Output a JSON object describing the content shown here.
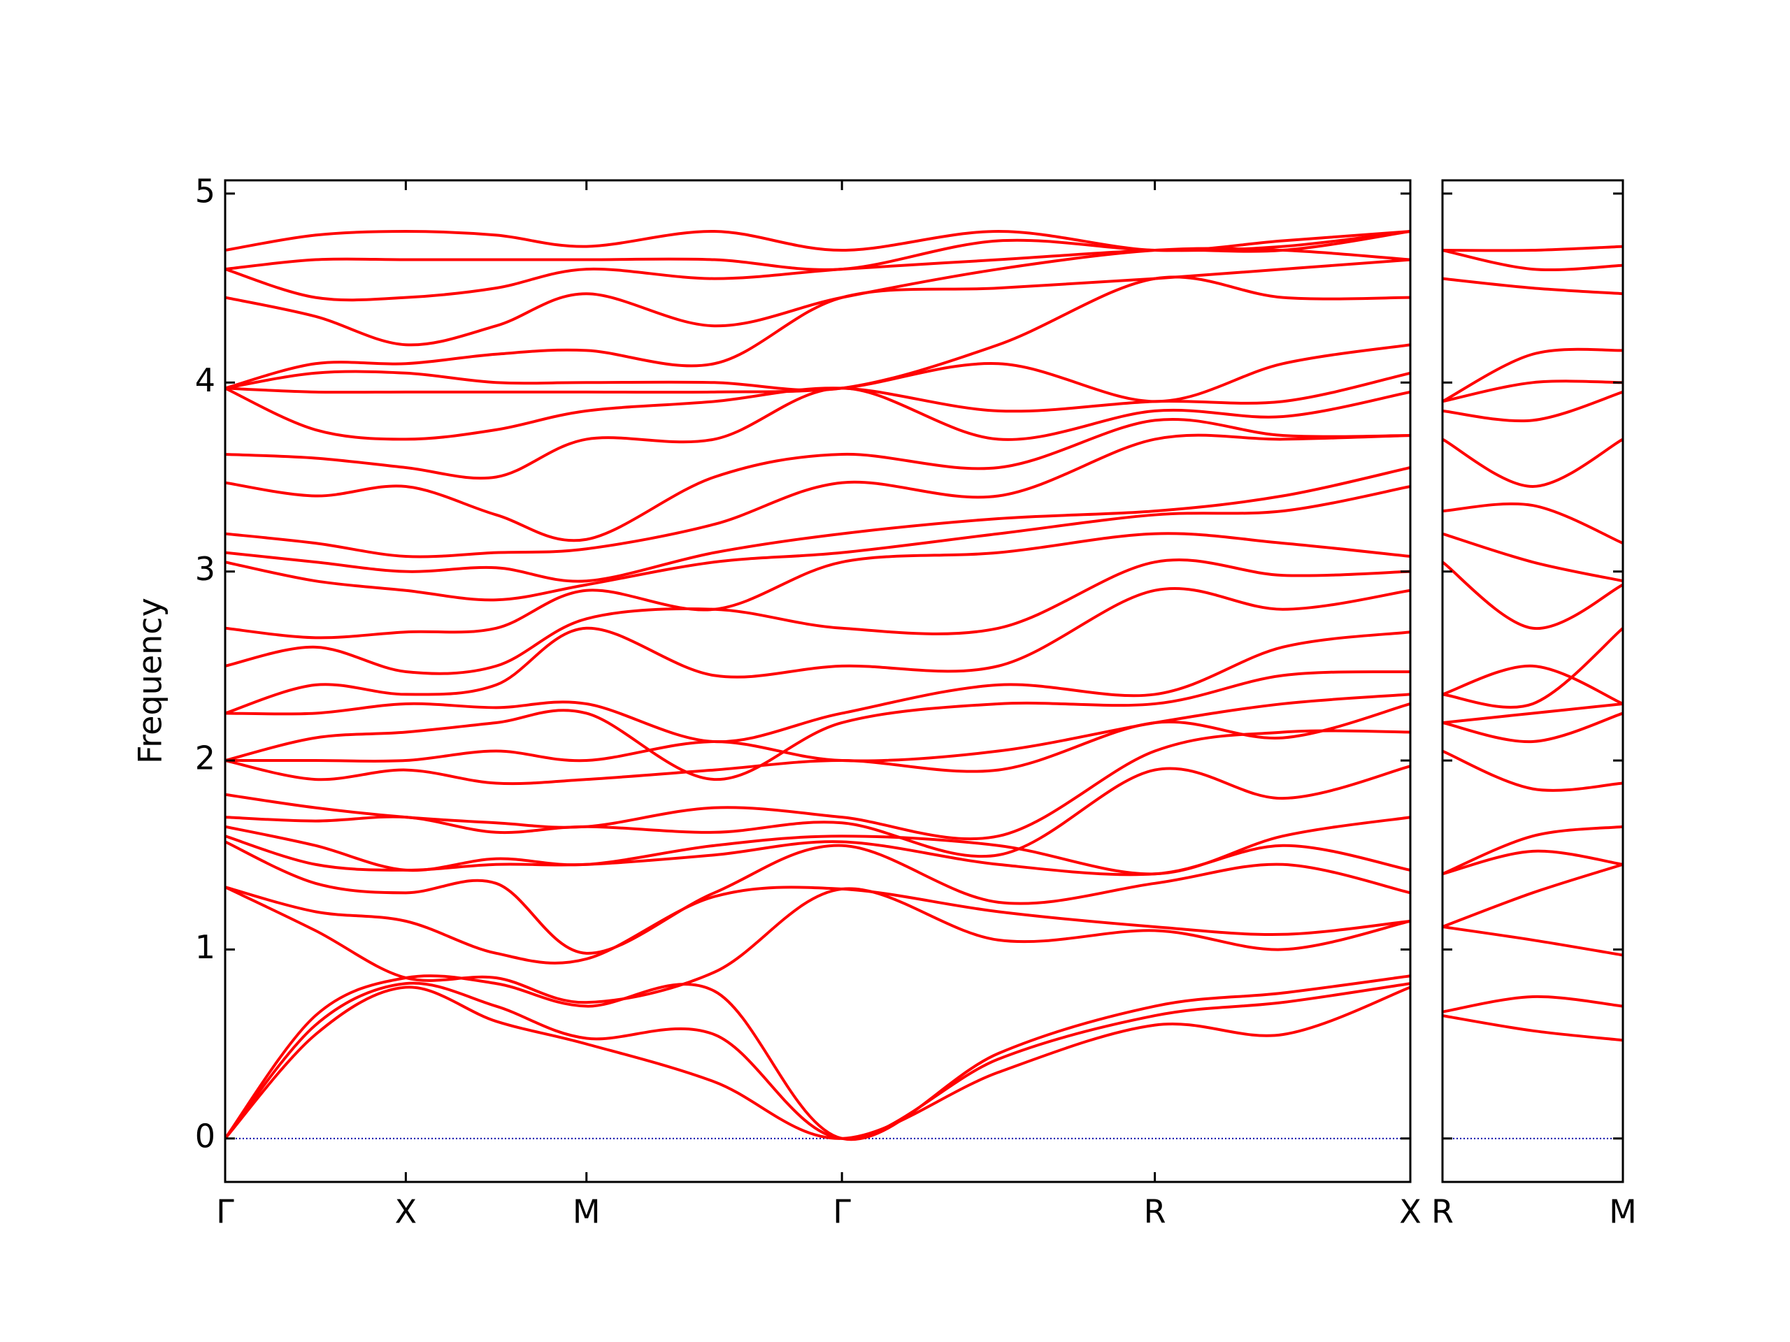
{
  "chart_data": [
    {
      "type": "line",
      "ylabel": "Frequency",
      "color": "#ff0000",
      "xlim": [
        0,
        3.2802
      ],
      "ylim": [
        -0.23,
        5.07
      ],
      "xticks": [
        {
          "value": 0,
          "label": "Γ"
        },
        {
          "value": 0.5,
          "label": "X"
        },
        {
          "value": 1.0,
          "label": "M"
        },
        {
          "value": 1.7071,
          "label": "Γ"
        },
        {
          "value": 2.5731,
          "label": "R"
        },
        {
          "value": 3.2802,
          "label": "X"
        }
      ],
      "yticks": [
        0,
        1,
        2,
        3,
        4,
        5
      ],
      "ytick_labels": true,
      "hline": 0,
      "hline_color": "#0000aa",
      "x": [
        0,
        0.25,
        0.5,
        0.75,
        1.0,
        1.354,
        1.7071,
        2.14,
        2.5731,
        2.927,
        3.2802
      ],
      "series": [
        {
          "values": [
            0,
            0.55,
            0.8,
            0.62,
            0.5,
            0.3,
            0,
            0.35,
            0.6,
            0.55,
            0.8
          ]
        },
        {
          "values": [
            0,
            0.6,
            0.82,
            0.7,
            0.53,
            0.55,
            0,
            0.42,
            0.65,
            0.72,
            0.82
          ]
        },
        {
          "values": [
            0,
            0.65,
            0.85,
            0.82,
            0.7,
            0.78,
            0,
            0.45,
            0.7,
            0.77,
            0.86
          ]
        },
        {
          "values": [
            1.33,
            1.1,
            0.85,
            0.85,
            0.72,
            0.88,
            1.32,
            1.05,
            1.1,
            1.0,
            1.15
          ]
        },
        {
          "values": [
            1.33,
            1.2,
            1.15,
            0.98,
            0.95,
            1.28,
            1.32,
            1.2,
            1.12,
            1.08,
            1.15
          ]
        },
        {
          "values": [
            1.57,
            1.35,
            1.3,
            1.35,
            0.98,
            1.3,
            1.55,
            1.25,
            1.35,
            1.45,
            1.3
          ]
        },
        {
          "values": [
            1.6,
            1.45,
            1.42,
            1.45,
            1.45,
            1.5,
            1.57,
            1.45,
            1.4,
            1.55,
            1.42
          ]
        },
        {
          "values": [
            1.65,
            1.55,
            1.42,
            1.48,
            1.45,
            1.55,
            1.6,
            1.55,
            1.4,
            1.6,
            1.7
          ]
        },
        {
          "values": [
            1.7,
            1.68,
            1.7,
            1.62,
            1.65,
            1.62,
            1.67,
            1.5,
            1.95,
            1.8,
            1.97
          ]
        },
        {
          "values": [
            1.82,
            1.75,
            1.7,
            1.67,
            1.65,
            1.75,
            1.7,
            1.6,
            2.05,
            2.15,
            2.15
          ]
        },
        {
          "values": [
            2.0,
            1.9,
            1.95,
            1.88,
            1.9,
            1.95,
            2.0,
            1.95,
            2.2,
            2.12,
            2.3
          ]
        },
        {
          "values": [
            2.0,
            2.0,
            2.0,
            2.05,
            2.0,
            2.1,
            2.0,
            2.05,
            2.2,
            2.3,
            2.35
          ]
        },
        {
          "values": [
            2.0,
            2.12,
            2.15,
            2.2,
            2.25,
            1.9,
            2.2,
            2.3,
            2.3,
            2.45,
            2.47
          ]
        },
        {
          "values": [
            2.25,
            2.25,
            2.3,
            2.28,
            2.3,
            2.1,
            2.25,
            2.4,
            2.35,
            2.6,
            2.68
          ]
        },
        {
          "values": [
            2.25,
            2.4,
            2.35,
            2.4,
            2.7,
            2.45,
            2.5,
            2.5,
            2.9,
            2.8,
            2.9
          ]
        },
        {
          "values": [
            2.5,
            2.6,
            2.47,
            2.5,
            2.75,
            2.8,
            2.7,
            2.7,
            3.05,
            2.98,
            3.0
          ]
        },
        {
          "values": [
            2.7,
            2.65,
            2.68,
            2.7,
            2.9,
            2.8,
            3.05,
            3.1,
            3.2,
            3.15,
            3.08
          ]
        },
        {
          "values": [
            3.05,
            2.95,
            2.9,
            2.85,
            2.93,
            3.05,
            3.1,
            3.2,
            3.3,
            3.32,
            3.45
          ]
        },
        {
          "values": [
            3.1,
            3.05,
            3.0,
            3.02,
            2.95,
            3.1,
            3.2,
            3.28,
            3.32,
            3.4,
            3.55
          ]
        },
        {
          "values": [
            3.2,
            3.15,
            3.08,
            3.1,
            3.12,
            3.25,
            3.47,
            3.4,
            3.7,
            3.7,
            3.72
          ]
        },
        {
          "values": [
            3.47,
            3.4,
            3.45,
            3.3,
            3.17,
            3.5,
            3.62,
            3.55,
            3.8,
            3.72,
            3.72
          ]
        },
        {
          "values": [
            3.62,
            3.6,
            3.55,
            3.5,
            3.7,
            3.7,
            3.97,
            3.7,
            3.85,
            3.82,
            3.95
          ]
        },
        {
          "values": [
            3.97,
            3.75,
            3.7,
            3.75,
            3.85,
            3.9,
            3.97,
            3.85,
            3.9,
            3.9,
            4.05
          ]
        },
        {
          "values": [
            3.97,
            3.95,
            3.95,
            3.95,
            3.95,
            3.95,
            3.97,
            4.1,
            3.9,
            4.1,
            4.2
          ]
        },
        {
          "values": [
            3.97,
            4.05,
            4.05,
            4.0,
            4.0,
            4.0,
            3.97,
            4.2,
            4.55,
            4.45,
            4.45
          ]
        },
        {
          "values": [
            3.97,
            4.1,
            4.1,
            4.15,
            4.17,
            4.1,
            4.45,
            4.5,
            4.55,
            4.6,
            4.65
          ]
        },
        {
          "values": [
            4.45,
            4.35,
            4.2,
            4.3,
            4.47,
            4.3,
            4.45,
            4.6,
            4.7,
            4.7,
            4.65
          ]
        },
        {
          "values": [
            4.6,
            4.45,
            4.45,
            4.5,
            4.6,
            4.55,
            4.6,
            4.65,
            4.7,
            4.7,
            4.8
          ]
        },
        {
          "values": [
            4.6,
            4.65,
            4.65,
            4.65,
            4.65,
            4.65,
            4.6,
            4.75,
            4.7,
            4.72,
            4.8
          ]
        },
        {
          "values": [
            4.7,
            4.78,
            4.8,
            4.78,
            4.72,
            4.8,
            4.7,
            4.8,
            4.7,
            4.75,
            4.8
          ]
        }
      ]
    },
    {
      "type": "line",
      "color": "#ff0000",
      "xlim": [
        0,
        0.5
      ],
      "ylim": [
        -0.23,
        5.07
      ],
      "xticks": [
        {
          "value": 0,
          "label": "R"
        },
        {
          "value": 0.5,
          "label": "M"
        }
      ],
      "yticks": [
        0,
        1,
        2,
        3,
        4,
        5
      ],
      "ytick_labels": false,
      "hline": 0,
      "hline_color": "#0000aa",
      "x": [
        0,
        0.25,
        0.5
      ],
      "series": [
        {
          "values": [
            0.65,
            0.57,
            0.52
          ]
        },
        {
          "values": [
            0.67,
            0.75,
            0.7
          ]
        },
        {
          "values": [
            1.12,
            1.05,
            0.97
          ]
        },
        {
          "values": [
            1.12,
            1.3,
            1.45
          ]
        },
        {
          "values": [
            1.4,
            1.52,
            1.45
          ]
        },
        {
          "values": [
            1.4,
            1.6,
            1.65
          ]
        },
        {
          "values": [
            2.05,
            1.85,
            1.88
          ]
        },
        {
          "values": [
            2.2,
            2.1,
            2.25
          ]
        },
        {
          "values": [
            2.2,
            2.25,
            2.3
          ]
        },
        {
          "values": [
            2.35,
            2.5,
            2.3
          ]
        },
        {
          "values": [
            2.35,
            2.3,
            2.7
          ]
        },
        {
          "values": [
            3.05,
            2.7,
            2.93
          ]
        },
        {
          "values": [
            3.2,
            3.05,
            2.95
          ]
        },
        {
          "values": [
            3.32,
            3.35,
            3.15
          ]
        },
        {
          "values": [
            3.7,
            3.45,
            3.7
          ]
        },
        {
          "values": [
            3.85,
            3.8,
            3.95
          ]
        },
        {
          "values": [
            3.9,
            4.0,
            4.0
          ]
        },
        {
          "values": [
            3.9,
            4.15,
            4.17
          ]
        },
        {
          "values": [
            4.55,
            4.5,
            4.47
          ]
        },
        {
          "values": [
            4.7,
            4.6,
            4.62
          ]
        },
        {
          "values": [
            4.7,
            4.7,
            4.72
          ]
        }
      ]
    }
  ]
}
